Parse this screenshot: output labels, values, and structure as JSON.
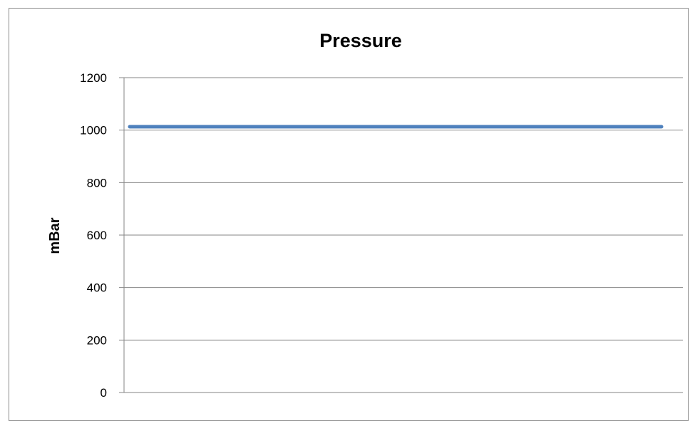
{
  "chart_data": {
    "type": "line",
    "title": "Pressure",
    "xlabel": "",
    "ylabel": "mBar",
    "ylim": [
      0,
      1200
    ],
    "yticks": [
      0,
      200,
      400,
      600,
      800,
      1000,
      1200
    ],
    "yticks_text": [
      "0",
      "200",
      "400",
      "600",
      "800",
      "1000",
      "1200"
    ],
    "x": [
      0,
      1
    ],
    "series": [
      {
        "values": [
          1013,
          1013
        ],
        "color": "#4f81bd"
      }
    ],
    "grid": true,
    "legend": "none"
  }
}
